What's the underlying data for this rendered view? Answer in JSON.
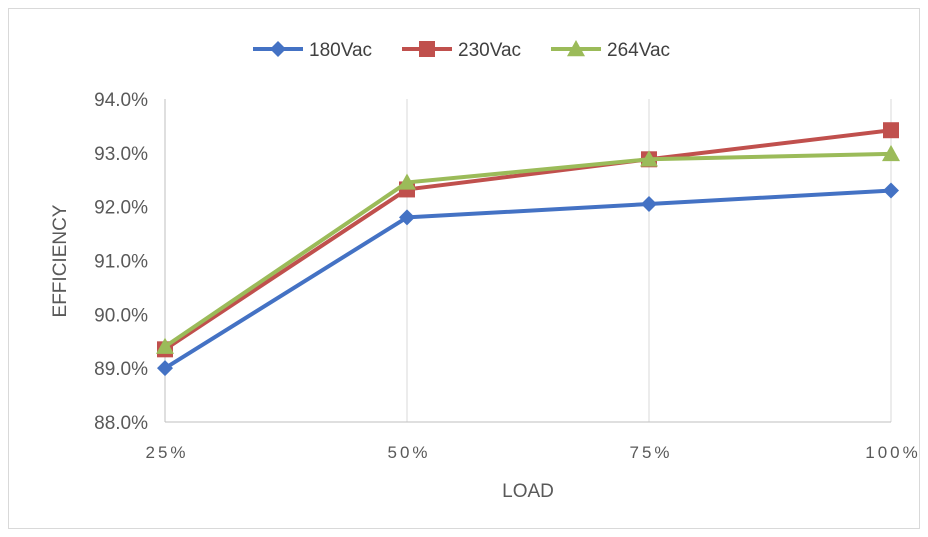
{
  "chart_data": {
    "type": "line",
    "xlabel": "LOAD",
    "ylabel": "EFFICIENCY",
    "categories": [
      "25%",
      "50%",
      "75%",
      "100%"
    ],
    "yticks": [
      "88.0%",
      "89.0%",
      "90.0%",
      "91.0%",
      "92.0%",
      "93.0%",
      "94.0%"
    ],
    "ylim": [
      88.0,
      94.0
    ],
    "grid": "vertical",
    "legend_position": "top",
    "series": [
      {
        "name": "180Vac",
        "color": "#4472C4",
        "marker": "diamond",
        "values": [
          89.0,
          91.8,
          92.05,
          92.3
        ]
      },
      {
        "name": "230Vac",
        "color": "#C0504D",
        "marker": "square",
        "values": [
          89.35,
          92.32,
          92.88,
          93.42
        ]
      },
      {
        "name": "264Vac",
        "color": "#9BBB59",
        "marker": "triangle",
        "values": [
          89.4,
          92.45,
          92.88,
          92.98
        ]
      }
    ]
  }
}
